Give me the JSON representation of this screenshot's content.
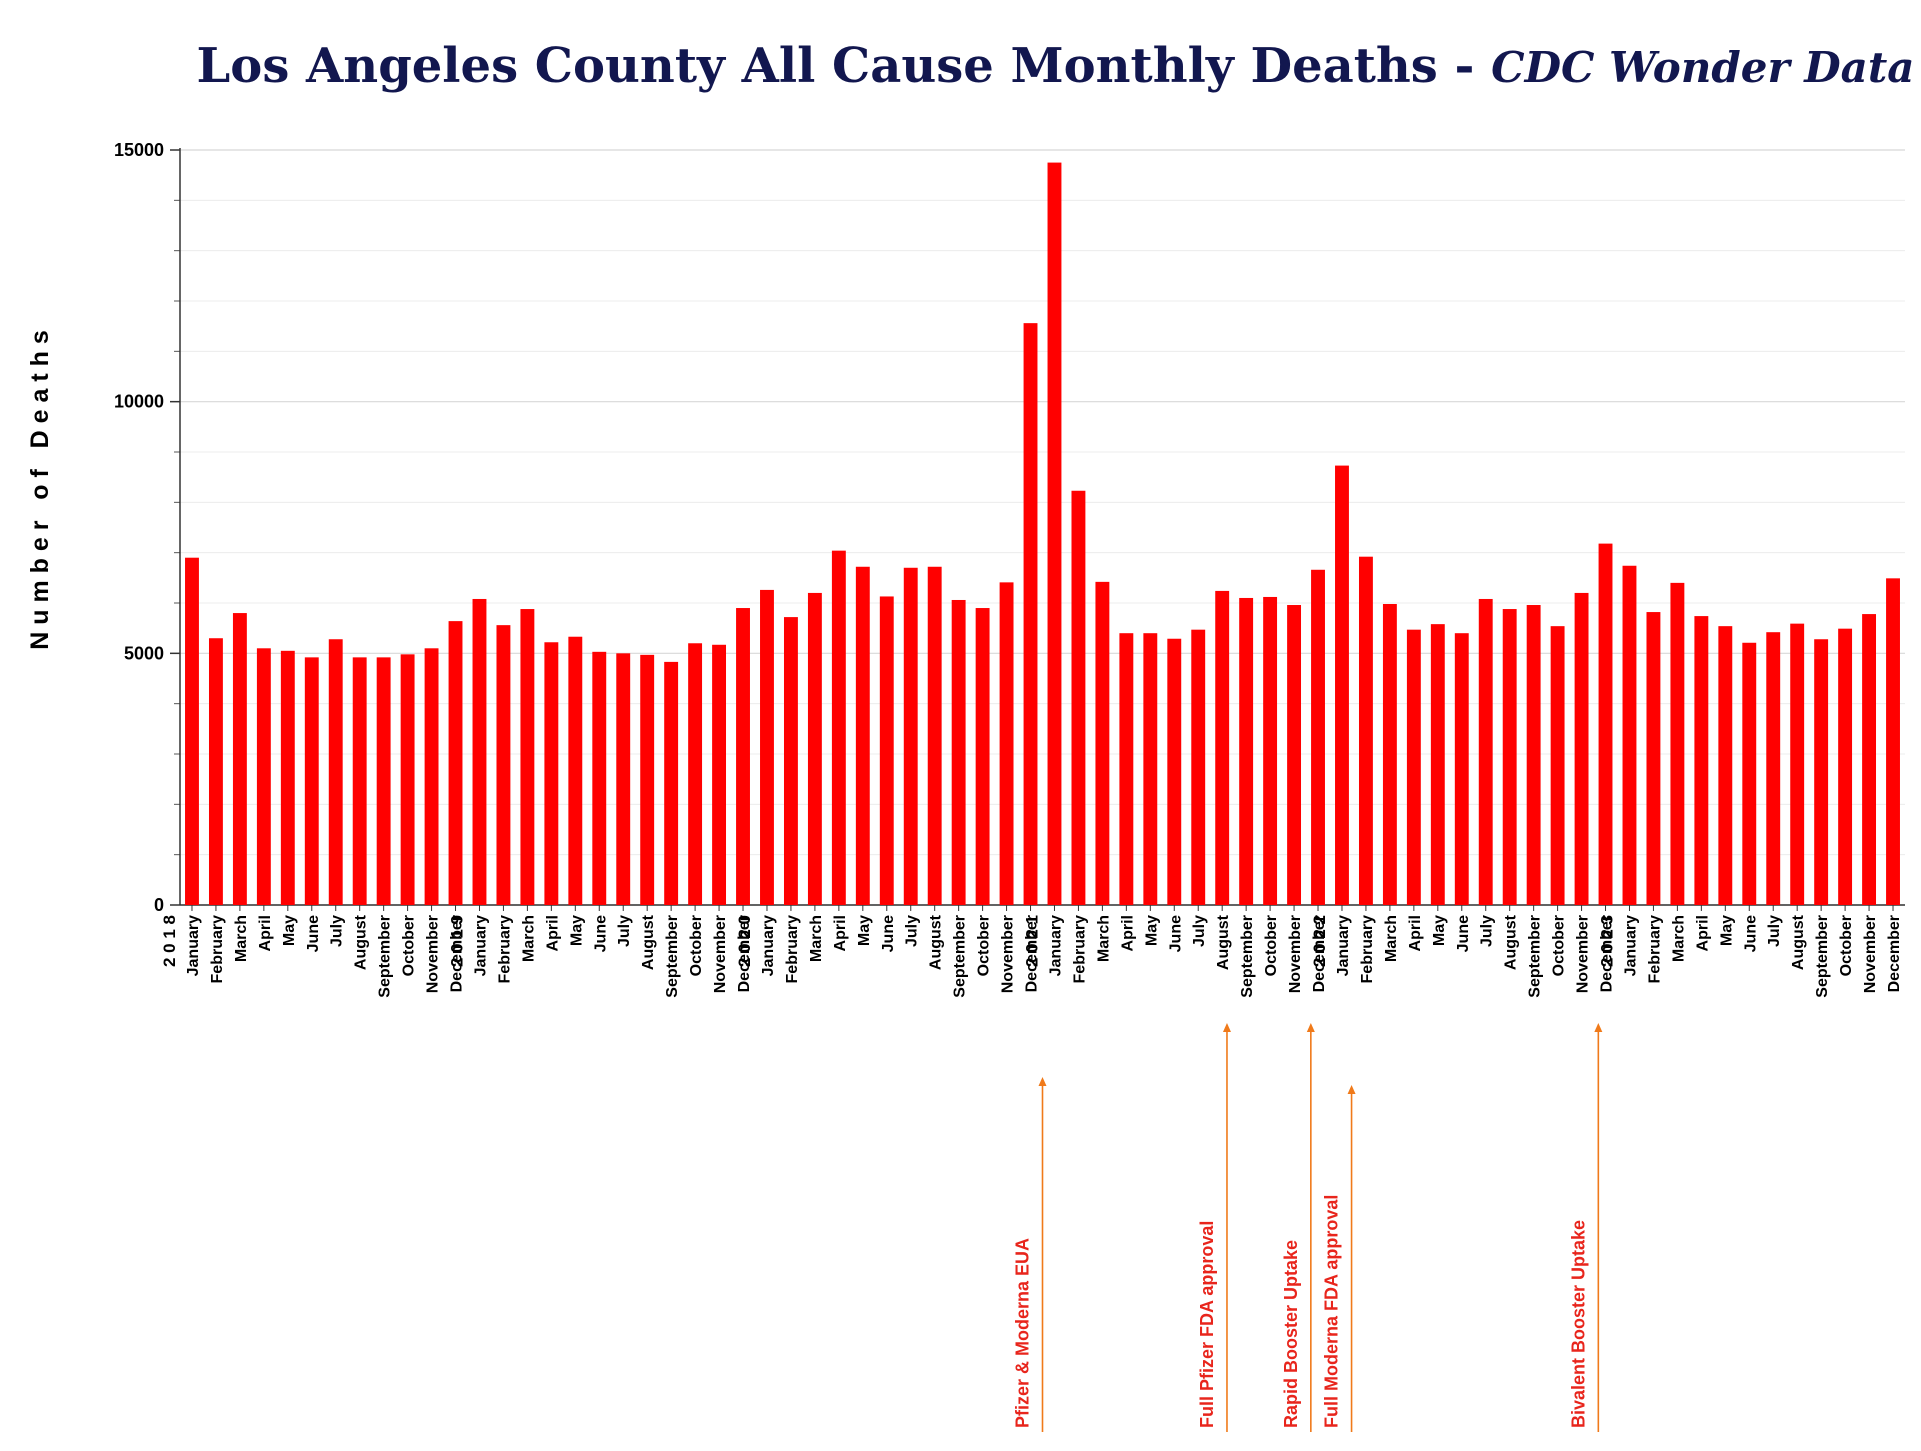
{
  "colors": {
    "bar": "#ff0000",
    "title": "#12174f",
    "annotation_text": "#e8251c",
    "annotation_arrow": "#f07a1a",
    "grid": "#d8d8d8"
  },
  "title": {
    "main": "Los Angeles County All Cause Monthly Deaths -",
    "sub": "CDC Wonder Data"
  },
  "chart_data": {
    "type": "bar",
    "title": "Los Angeles County All Cause Monthly Deaths - CDC Wonder Data",
    "xlabel": "",
    "ylabel": "N u m b e r   o f   D e a t h s",
    "ylim": [
      0,
      15000
    ],
    "yticks": [
      0,
      5000,
      10000,
      15000
    ],
    "grid": true,
    "years": [
      {
        "label": "2 0 1 8",
        "start_index": 0
      },
      {
        "label": "2 0 1 9",
        "start_index": 12
      },
      {
        "label": "2 0 2 0",
        "start_index": 24
      },
      {
        "label": "2 0 2 1",
        "start_index": 36
      },
      {
        "label": "2 0 2 2",
        "start_index": 48
      },
      {
        "label": "2 0 2 3",
        "start_index": 60
      }
    ],
    "categories": [
      "January",
      "February",
      "March",
      "April",
      "May",
      "June",
      "July",
      "August",
      "September",
      "October",
      "November",
      "December",
      "January",
      "February",
      "March",
      "April",
      "May",
      "June",
      "July",
      "August",
      "September",
      "October",
      "November",
      "December",
      "January",
      "February",
      "March",
      "April",
      "May",
      "June",
      "July",
      "August",
      "September",
      "October",
      "November",
      "December",
      "January",
      "February",
      "March",
      "April",
      "May",
      "June",
      "July",
      "August",
      "September",
      "October",
      "November",
      "December",
      "January",
      "February",
      "March",
      "April",
      "May",
      "June",
      "July",
      "August",
      "September",
      "October",
      "November",
      "December",
      "January",
      "February",
      "March",
      "April",
      "May",
      "June",
      "July",
      "August",
      "September",
      "October",
      "November",
      "December"
    ],
    "values": [
      6900,
      5300,
      5800,
      5100,
      5050,
      4920,
      5280,
      4920,
      4920,
      4980,
      5100,
      5640,
      6080,
      5560,
      5880,
      5220,
      5330,
      5030,
      5000,
      4970,
      4830,
      5200,
      5170,
      5900,
      6260,
      5720,
      6200,
      7040,
      6720,
      6130,
      6700,
      6720,
      6060,
      5900,
      6410,
      11560,
      14750,
      8230,
      6420,
      5400,
      5400,
      5290,
      5470,
      6240,
      6100,
      6120,
      5960,
      6660,
      8730,
      6920,
      5980,
      5470,
      5580,
      5400,
      6080,
      5880,
      5960,
      5540,
      6200,
      7180,
      6740,
      5820,
      6400,
      5740,
      5540,
      5210,
      5420,
      5590,
      5280,
      5490,
      5780,
      6490
    ],
    "annotations": [
      {
        "text": "Pfizer & Moderna EUA",
        "bar_index": 35.5
      },
      {
        "text": "Full Pfizer FDA approval",
        "bar_index": 43.2
      },
      {
        "text": "Rapid Booster Uptake",
        "bar_index": 46.7
      },
      {
        "text": "Full Moderna FDA approval",
        "bar_index": 48.4
      },
      {
        "text": "Bivalent Booster Uptake",
        "bar_index": 58.7
      }
    ]
  }
}
